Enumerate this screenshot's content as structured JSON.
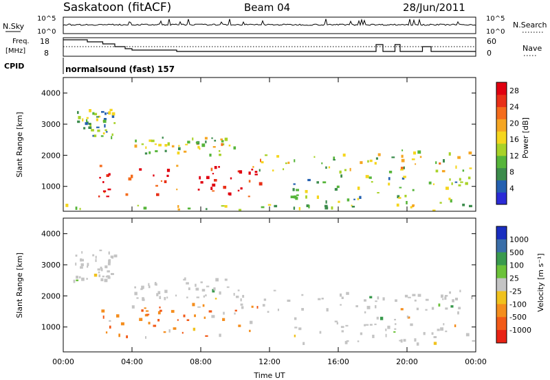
{
  "header": {
    "station": "Saskatoon (fitACF)",
    "beam": "Beam 04",
    "date": "28/Jun/2011"
  },
  "strip": {
    "nsky_label": "N.Sky",
    "nsky_ticks": [
      "10^5",
      "10^0"
    ],
    "nsearch_label": "N.Search",
    "nsearch_ticks": [
      "10^5",
      "10^0"
    ],
    "freq_label_1": "Freq.",
    "freq_label_2": "[MHz]",
    "freq_ticks": [
      "18",
      "8"
    ],
    "nave_label": "Nave",
    "nave_ticks": [
      "60",
      "0"
    ],
    "cpid_label": "CPID",
    "cpid_value": "normalsound (fast) 157"
  },
  "colors": {
    "power": [
      "#2b2bd6",
      "#2460b0",
      "#3c8c4c",
      "#56b53a",
      "#a8d228",
      "#f5d61e",
      "#f5a623",
      "#f46c1c",
      "#e83018",
      "#e00010"
    ],
    "velocity": [
      "#1a2ec0",
      "#3a6ea8",
      "#3a9a4e",
      "#6cc23a",
      "#c4c4c4",
      "#f0c21e",
      "#f48e1e",
      "#f25a18",
      "#e82214"
    ],
    "ground_scatter": "#c0c0c0"
  },
  "chart_data": [
    {
      "type": "heatmap",
      "panel": "power",
      "ylabel": "Slant Range [km]",
      "y_ticks": [
        "4000",
        "3000",
        "2000",
        "1000"
      ],
      "ylim": [
        200,
        4500
      ],
      "x_ticks": [
        "00:00",
        "04:00",
        "08:00",
        "12:00",
        "16:00",
        "20:00",
        "00:00"
      ],
      "xlim_hours": [
        0,
        24
      ],
      "colorbar_label": "Power [dB]",
      "colorbar_ticks": [
        "28",
        "24",
        "20",
        "16",
        "12",
        "8",
        "4"
      ],
      "colorbar_range": [
        0,
        30
      ],
      "features": [
        {
          "t0": 0.8,
          "t1": 3.0,
          "r0": 2500,
          "r1": 3500,
          "level": 0.35
        },
        {
          "t0": 2.0,
          "t1": 11.5,
          "r0": 700,
          "r1": 1700,
          "level": 0.9
        },
        {
          "t0": 4.0,
          "t1": 10.0,
          "r0": 2000,
          "r1": 2600,
          "level": 0.5
        },
        {
          "t0": 11.0,
          "t1": 24.0,
          "r0": 1500,
          "r1": 2200,
          "level": 0.5
        },
        {
          "t0": 13.0,
          "t1": 24.0,
          "r0": 500,
          "r1": 1400,
          "level": 0.35
        },
        {
          "t0": 0.0,
          "t1": 24.0,
          "r0": 200,
          "r1": 450,
          "level": 0.45
        }
      ]
    },
    {
      "type": "heatmap",
      "panel": "velocity",
      "ylabel": "Slant Range [km]",
      "y_ticks": [
        "4000",
        "3000",
        "2000",
        "1000"
      ],
      "ylim": [
        200,
        4500
      ],
      "x_ticks": [
        "00:00",
        "04:00",
        "08:00",
        "12:00",
        "16:00",
        "20:00",
        "00:00"
      ],
      "xlabel": "Time UT",
      "xlim_hours": [
        0,
        24
      ],
      "colorbar_label": "Velocity [m s⁻¹]",
      "colorbar_ticks": [
        "1000",
        "500",
        "100",
        "25",
        "-25",
        "-100",
        "-500",
        "-1000"
      ],
      "colorbar_range": [
        -1000,
        1000
      ],
      "features": [
        {
          "t0": 0.5,
          "t1": 3.0,
          "r0": 2400,
          "r1": 3500,
          "v": 0
        },
        {
          "t0": 2.0,
          "t1": 11.5,
          "r0": 700,
          "r1": 1800,
          "v": -300
        },
        {
          "t0": 4.0,
          "t1": 10.5,
          "r0": 1900,
          "r1": 2600,
          "v": 0
        },
        {
          "t0": 11.0,
          "t1": 24.0,
          "r0": 1500,
          "r1": 2200,
          "v": 0
        },
        {
          "t0": 13.0,
          "t1": 24.0,
          "r0": 500,
          "r1": 1400,
          "v": 0
        }
      ]
    }
  ]
}
